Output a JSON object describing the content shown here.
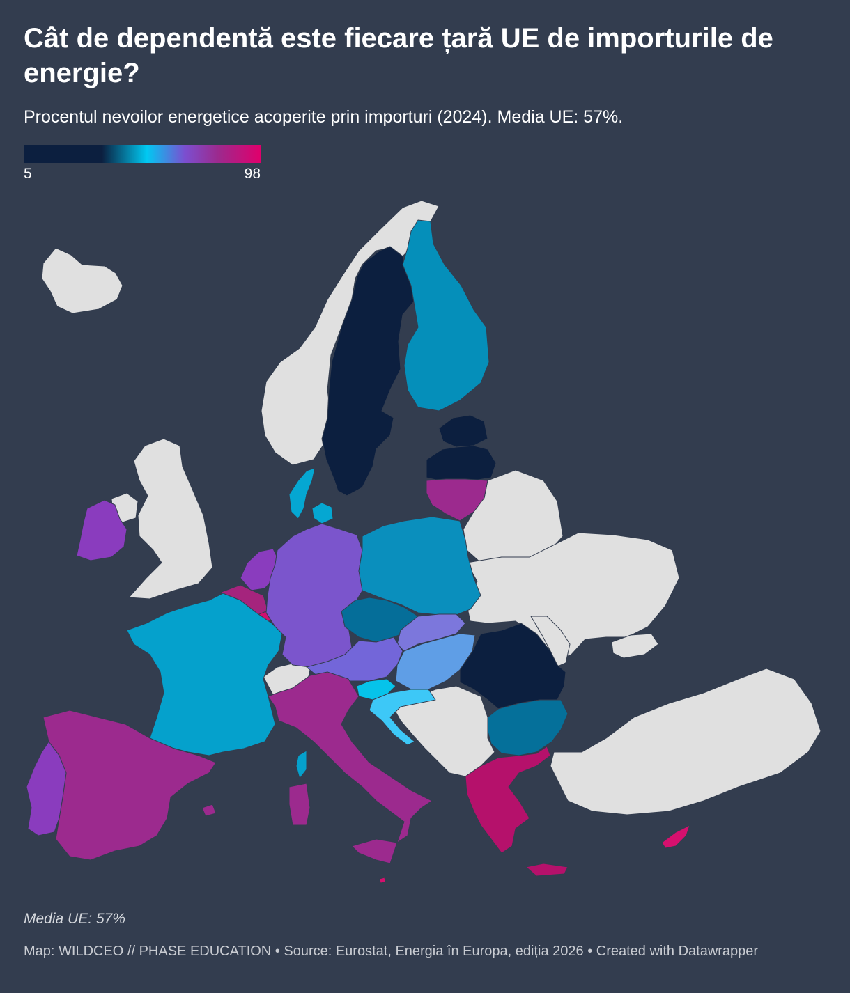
{
  "title": "Cât de dependentă este fiecare țară UE de importurile de energie?",
  "subtitle": "Procentul nevoilor energetice acoperite prin importuri (2024). Media UE: 57%.",
  "legend": {
    "min_label": "5",
    "max_label": "98",
    "colors": [
      "#0c1f3f",
      "#0c1f3f",
      "#00c9f2",
      "#7b4fd0",
      "#9c2a8e",
      "#e0006c"
    ]
  },
  "note": "Media UE: 57%",
  "footer": "Map: WILDCEO // PHASE EDUCATION • Source: Eurostat, Energia în Europa, ediția 2026 • Created with Datawrapper",
  "map": {
    "non_eu_color": "#e0e0e0",
    "no_data_color": "#9a9ea6",
    "countries": {
      "sweden": "#0c1f3f",
      "finland": "#058fba",
      "estonia": "#0c1f3f",
      "latvia": "#0c1f3f",
      "lithuania": "#9c2a8e",
      "denmark": "#05a7d2",
      "ireland": "#8a3cbe",
      "netherlands": "#8a3cbe",
      "belgium": "#a5247d",
      "luxembourg": "#d0106f",
      "germany": "#7b55cc",
      "poland": "#0a8fbd",
      "czechia": "#056e99",
      "slovakia": "#7c77dc",
      "austria": "#7366d9",
      "hungary": "#5f9ee6",
      "slovenia": "#06c3ea",
      "croatia": "#3dc8f7",
      "romania": "#0c1f3f",
      "bulgaria": "#05709a",
      "greece": "#b5116b",
      "cyprus": "#d6106e",
      "malta": "#d6106e",
      "france": "#05a1cc",
      "spain": "#9c2a8e",
      "portugal": "#8a3cbe",
      "italy": "#9c2a8e"
    }
  }
}
